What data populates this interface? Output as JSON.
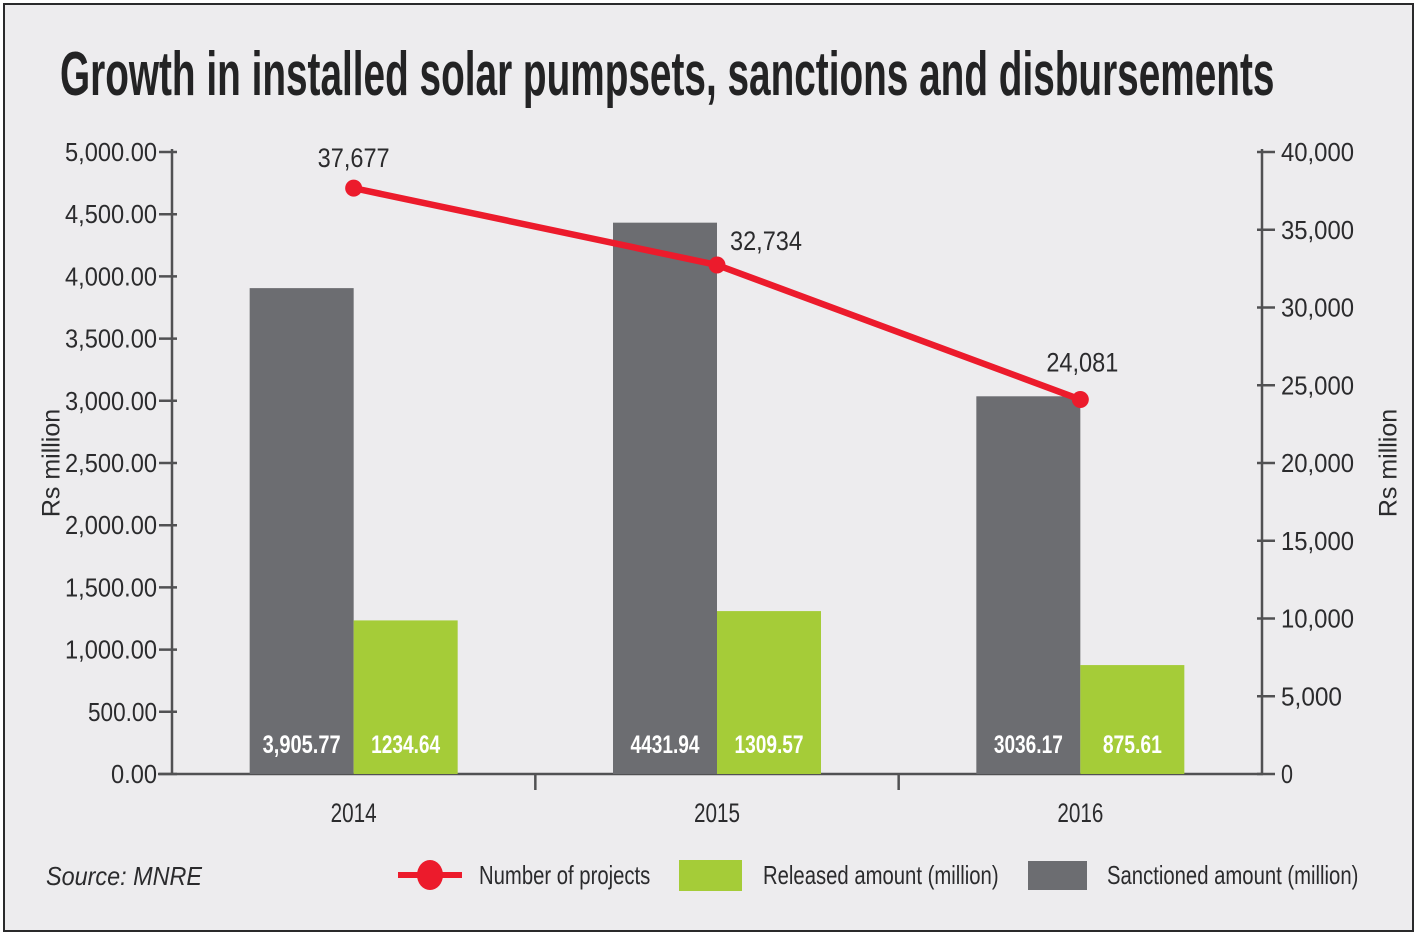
{
  "title": "Growth in installed solar pumpsets, sanctions and disbursements",
  "source_note": "Source: MNRE",
  "colors": {
    "background": "#EDECEE",
    "frame_border": "#2A2A2B",
    "axis": "#515153",
    "text": "#2B2B2D",
    "bar_value_text": "#FFFFFF",
    "sanctioned_bar": "#6C6D71",
    "released_bar": "#A5CC38",
    "projects_line": "#EC1B2C"
  },
  "chart_data": {
    "type": "bar",
    "subtype": "grouped-bars-with-line",
    "grid": false,
    "legend_position": "bottom",
    "categories": [
      "2014",
      "2015",
      "2016"
    ],
    "left_axis": {
      "label": "Rs million",
      "min": 0,
      "max": 5000,
      "tick_step": 500,
      "ticks": [
        "0.00",
        "500.00",
        "1,000.00",
        "1,500.00",
        "2,000.00",
        "2,500.00",
        "3,000.00",
        "3,500.00",
        "4,000.00",
        "4,500.00",
        "5,000.00"
      ]
    },
    "right_axis": {
      "label": "Rs million",
      "min": 0,
      "max": 40000,
      "tick_step": 5000,
      "ticks": [
        "0",
        "5,000",
        "10,000",
        "15,000",
        "20,000",
        "25,000",
        "30,000",
        "35,000",
        "40,000"
      ]
    },
    "bar_series": [
      {
        "name": "Sanctioned amount (million)",
        "axis": "left",
        "color": "#6C6D71",
        "values": [
          3905.77,
          4431.94,
          3036.17
        ],
        "value_labels": [
          "3,905.77",
          "4431.94",
          "3036.17"
        ]
      },
      {
        "name": "Released amount (million)",
        "axis": "left",
        "color": "#A5CC38",
        "values": [
          1234.64,
          1309.57,
          875.61
        ],
        "value_labels": [
          "1234.64",
          "1309.57",
          "875.61"
        ]
      }
    ],
    "line_series": [
      {
        "name": "Number of projects",
        "axis": "right",
        "color": "#EC1B2C",
        "values": [
          37677,
          32734,
          24081
        ],
        "value_labels": [
          "37,677",
          "32,734",
          "24,081"
        ]
      }
    ],
    "legend": [
      {
        "label": "Number of projects",
        "marker": "line-dot",
        "color": "#EC1B2C"
      },
      {
        "label": "Released amount (million)",
        "marker": "swatch",
        "color": "#A5CC38"
      },
      {
        "label": "Sanctioned amount (million)",
        "marker": "swatch",
        "color": "#6C6D71"
      }
    ]
  }
}
